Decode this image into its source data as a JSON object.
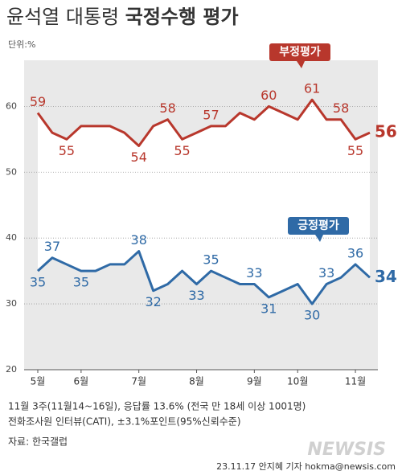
{
  "chart_data": {
    "type": "line",
    "title": [
      "윤석열 대통령",
      "국정수행 평가"
    ],
    "unit": "단위:%",
    "categories": [
      "5월",
      null,
      null,
      "6월",
      null,
      null,
      null,
      "7월",
      null,
      null,
      null,
      "8월",
      null,
      null,
      null,
      "9월",
      null,
      null,
      "10월",
      null,
      null,
      null,
      "11월",
      null
    ],
    "series": [
      {
        "name": "부정평가",
        "color": "#b8372c",
        "values": [
          59,
          56,
          55,
          57,
          57,
          57,
          56,
          54,
          57,
          58,
          55,
          56,
          57,
          57,
          59,
          58,
          60,
          59,
          58,
          61,
          58,
          58,
          55,
          56
        ],
        "value_labels": [
          "59",
          null,
          "55",
          null,
          null,
          null,
          null,
          "54",
          null,
          "58",
          "55",
          null,
          "57",
          null,
          null,
          null,
          "60",
          null,
          null,
          "61",
          null,
          "58",
          "55",
          "56"
        ]
      },
      {
        "name": "긍정평가",
        "color": "#2f6aa6",
        "values": [
          35,
          37,
          36,
          35,
          35,
          36,
          36,
          38,
          32,
          33,
          35,
          33,
          35,
          34,
          33,
          33,
          31,
          32,
          33,
          30,
          33,
          34,
          36,
          34
        ],
        "value_labels": [
          "35",
          "37",
          null,
          "35",
          null,
          null,
          null,
          "38",
          "32",
          null,
          null,
          "33",
          "35",
          null,
          null,
          "33",
          "31",
          null,
          null,
          "30",
          "33",
          null,
          "36",
          "34"
        ]
      }
    ],
    "ylim": [
      20,
      67
    ],
    "yticks": [
      20,
      30,
      40,
      50,
      60
    ],
    "grid": true,
    "notes": [
      "11월 3주(11월14~16일), 응답률 13.6% (전국 만 18세 이상 1001명)",
      "전화조사원 인터뷰(CATI), ±3.1%포인트(95%신뢰수준)",
      "자료: 한국갤럽"
    ],
    "credit": "23.11.17 안지혜 기자 hokma@newsis.com",
    "logo": "NEWSIS"
  }
}
